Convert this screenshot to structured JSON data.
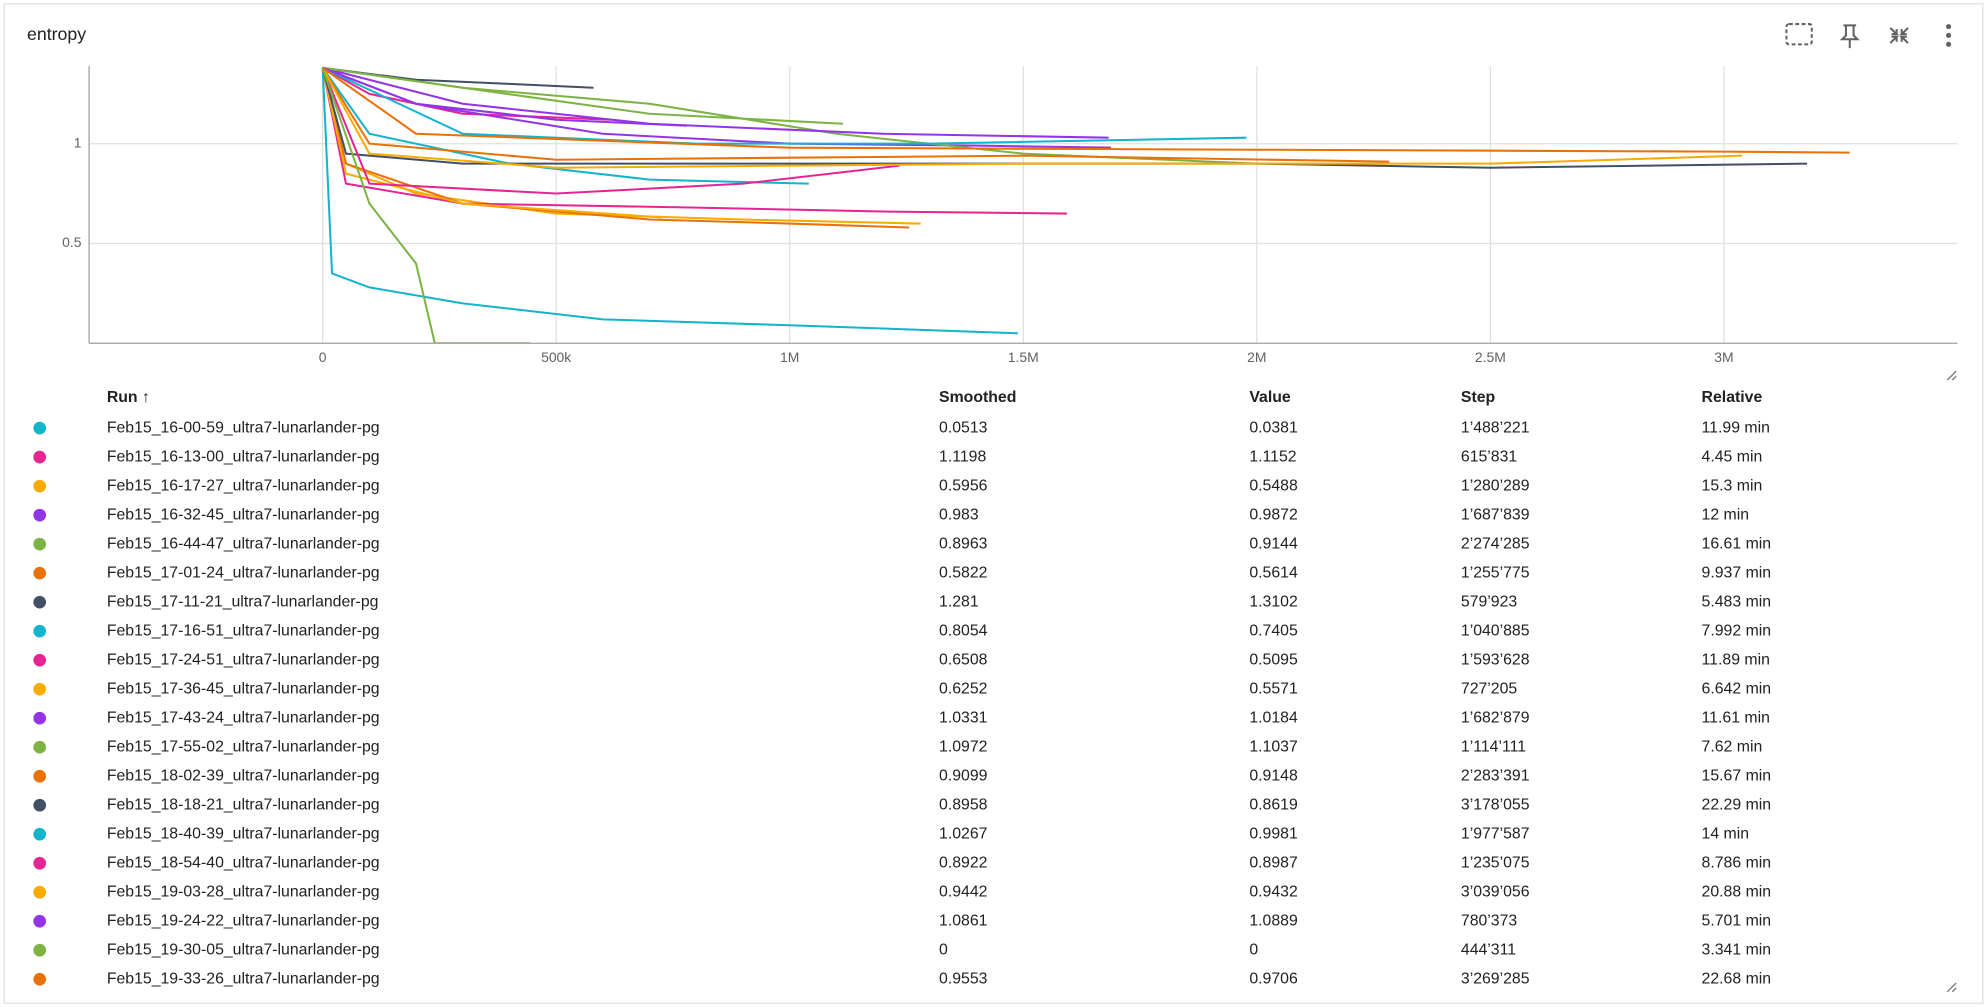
{
  "card_title": "entropy",
  "chart_data": {
    "type": "line",
    "xlim": [
      -500000,
      3500000
    ],
    "xticks": [
      0,
      {
        "value": 500000,
        "label": "500k"
      },
      {
        "value": 1000000,
        "label": "1M"
      },
      {
        "value": 1500000,
        "label": "1.5M"
      },
      {
        "value": 2000000,
        "label": "2M"
      },
      {
        "value": 2500000,
        "label": "2.5M"
      },
      {
        "value": 3000000,
        "label": "3M"
      }
    ],
    "ylim": [
      0,
      1.39
    ],
    "yticks": [
      0.5,
      1
    ],
    "grid": true,
    "series": [
      {
        "color": "#12b5cb",
        "x": [
          0,
          20000,
          100000,
          300000,
          600000,
          1000000,
          1488221
        ],
        "values": [
          1.38,
          0.35,
          0.28,
          0.2,
          0.12,
          0.09,
          0.05
        ]
      },
      {
        "color": "#e52592",
        "x": [
          0,
          100000,
          300000,
          615831
        ],
        "values": [
          1.38,
          1.25,
          1.15,
          1.12
        ]
      },
      {
        "color": "#f9ab00",
        "x": [
          0,
          50000,
          200000,
          500000,
          900000,
          1280289
        ],
        "values": [
          1.38,
          0.9,
          0.75,
          0.65,
          0.62,
          0.6
        ]
      },
      {
        "color": "#9334e6",
        "x": [
          0,
          200000,
          600000,
          1000000,
          1400000,
          1687839
        ],
        "values": [
          1.38,
          1.2,
          1.05,
          1.0,
          0.99,
          0.98
        ]
      },
      {
        "color": "#7cb342",
        "x": [
          0,
          300000,
          700000,
          1100000,
          1500000,
          2000000,
          2274285
        ],
        "values": [
          1.38,
          1.28,
          1.2,
          1.05,
          0.95,
          0.9,
          0.9
        ]
      },
      {
        "color": "#e8710a",
        "x": [
          0,
          50000,
          300000,
          700000,
          1000000,
          1255775
        ],
        "values": [
          1.38,
          0.9,
          0.7,
          0.62,
          0.6,
          0.58
        ]
      },
      {
        "color": "#425066",
        "x": [
          0,
          200000,
          400000,
          579923
        ],
        "values": [
          1.38,
          1.32,
          1.3,
          1.28
        ]
      },
      {
        "color": "#12b5cb",
        "x": [
          0,
          100000,
          400000,
          700000,
          1040885
        ],
        "values": [
          1.38,
          1.05,
          0.9,
          0.82,
          0.8
        ]
      },
      {
        "color": "#e52592",
        "x": [
          0,
          50000,
          300000,
          800000,
          1200000,
          1593628
        ],
        "values": [
          1.38,
          0.8,
          0.7,
          0.68,
          0.66,
          0.65
        ]
      },
      {
        "color": "#f9ab00",
        "x": [
          0,
          50000,
          300000,
          727205
        ],
        "values": [
          1.38,
          0.85,
          0.7,
          0.63
        ]
      },
      {
        "color": "#9334e6",
        "x": [
          0,
          300000,
          700000,
          1200000,
          1682879
        ],
        "values": [
          1.38,
          1.2,
          1.1,
          1.05,
          1.03
        ]
      },
      {
        "color": "#7cb342",
        "x": [
          0,
          300000,
          700000,
          1114111
        ],
        "values": [
          1.38,
          1.28,
          1.15,
          1.1
        ]
      },
      {
        "color": "#e8710a",
        "x": [
          0,
          100000,
          500000,
          1000000,
          1500000,
          2283391
        ],
        "values": [
          1.38,
          1.0,
          0.92,
          0.93,
          0.94,
          0.91
        ]
      },
      {
        "color": "#425066",
        "x": [
          0,
          50000,
          300000,
          1000000,
          2000000,
          2500000,
          3178055
        ],
        "values": [
          1.38,
          0.95,
          0.9,
          0.9,
          0.9,
          0.88,
          0.9
        ]
      },
      {
        "color": "#12b5cb",
        "x": [
          0,
          300000,
          800000,
          1300000,
          1977587
        ],
        "values": [
          1.38,
          1.05,
          1.0,
          1.0,
          1.03
        ]
      },
      {
        "color": "#e52592",
        "x": [
          0,
          100000,
          500000,
          900000,
          1235075
        ],
        "values": [
          1.38,
          0.8,
          0.75,
          0.8,
          0.89
        ]
      },
      {
        "color": "#f9ab00",
        "x": [
          0,
          100000,
          500000,
          1500000,
          2500000,
          3039056
        ],
        "values": [
          1.38,
          0.95,
          0.88,
          0.9,
          0.9,
          0.94
        ]
      },
      {
        "color": "#9334e6",
        "x": [
          0,
          200000,
          500000,
          780373
        ],
        "values": [
          1.38,
          1.2,
          1.12,
          1.09
        ]
      },
      {
        "color": "#7cb342",
        "x": [
          0,
          100000,
          200000,
          240000,
          444311
        ],
        "values": [
          1.38,
          0.7,
          0.4,
          0,
          0
        ]
      },
      {
        "color": "#e8710a",
        "x": [
          0,
          200000,
          1000000,
          2000000,
          3000000,
          3269285
        ],
        "values": [
          1.38,
          1.05,
          0.98,
          0.97,
          0.96,
          0.955
        ]
      }
    ]
  },
  "table": {
    "header": [
      "Run ↑",
      "Smoothed",
      "Value",
      "Step",
      "Relative"
    ],
    "rows": [
      [
        "Feb15_16-00-59_ultra7-lunarlander-pg",
        "0.0513",
        "0.0381",
        "1’488’221",
        "11.99 min"
      ],
      [
        "Feb15_16-13-00_ultra7-lunarlander-pg",
        "1.1198",
        "1.1152",
        "615’831",
        "4.45 min"
      ],
      [
        "Feb15_16-17-27_ultra7-lunarlander-pg",
        "0.5956",
        "0.5488",
        "1’280’289",
        "15.3 min"
      ],
      [
        "Feb15_16-32-45_ultra7-lunarlander-pg",
        "0.983",
        "0.9872",
        "1’687’839",
        "12 min"
      ],
      [
        "Feb15_16-44-47_ultra7-lunarlander-pg",
        "0.8963",
        "0.9144",
        "2’274’285",
        "16.61 min"
      ],
      [
        "Feb15_17-01-24_ultra7-lunarlander-pg",
        "0.5822",
        "0.5614",
        "1’255’775",
        "9.937 min"
      ],
      [
        "Feb15_17-11-21_ultra7-lunarlander-pg",
        "1.281",
        "1.3102",
        "579’923",
        "5.483 min"
      ],
      [
        "Feb15_17-16-51_ultra7-lunarlander-pg",
        "0.8054",
        "0.7405",
        "1’040’885",
        "7.992 min"
      ],
      [
        "Feb15_17-24-51_ultra7-lunarlander-pg",
        "0.6508",
        "0.5095",
        "1’593’628",
        "11.89 min"
      ],
      [
        "Feb15_17-36-45_ultra7-lunarlander-pg",
        "0.6252",
        "0.5571",
        "727’205",
        "6.642 min"
      ],
      [
        "Feb15_17-43-24_ultra7-lunarlander-pg",
        "1.0331",
        "1.0184",
        "1’682’879",
        "11.61 min"
      ],
      [
        "Feb15_17-55-02_ultra7-lunarlander-pg",
        "1.0972",
        "1.1037",
        "1’114’111",
        "7.62 min"
      ],
      [
        "Feb15_18-02-39_ultra7-lunarlander-pg",
        "0.9099",
        "0.9148",
        "2’283’391",
        "15.67 min"
      ],
      [
        "Feb15_18-18-21_ultra7-lunarlander-pg",
        "0.8958",
        "0.8619",
        "3’178’055",
        "22.29 min"
      ],
      [
        "Feb15_18-40-39_ultra7-lunarlander-pg",
        "1.0267",
        "0.9981",
        "1’977’587",
        "14 min"
      ],
      [
        "Feb15_18-54-40_ultra7-lunarlander-pg",
        "0.8922",
        "0.8987",
        "1’235’075",
        "8.786 min"
      ],
      [
        "Feb15_19-03-28_ultra7-lunarlander-pg",
        "0.9442",
        "0.9432",
        "3’039’056",
        "20.88 min"
      ],
      [
        "Feb15_19-24-22_ultra7-lunarlander-pg",
        "1.0861",
        "1.0889",
        "780’373",
        "5.701 min"
      ],
      [
        "Feb15_19-30-05_ultra7-lunarlander-pg",
        "0",
        "0",
        "444’311",
        "3.341 min"
      ],
      [
        "Feb15_19-33-26_ultra7-lunarlander-pg",
        "0.9553",
        "0.9706",
        "3’269’285",
        "22.68 min"
      ]
    ]
  }
}
